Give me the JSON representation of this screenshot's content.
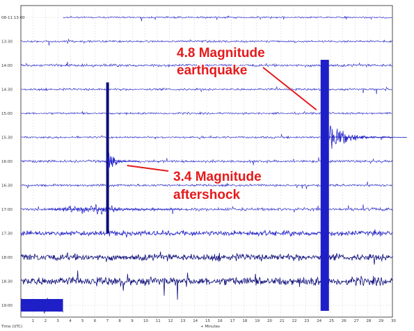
{
  "chart_data": {
    "type": "line",
    "title": "",
    "xlabel": "+ Minutes",
    "ylabel": "Time (UTC)",
    "xlim": [
      0,
      30
    ],
    "x_ticks": [
      "1",
      "2",
      "3",
      "4",
      "5",
      "6",
      "7",
      "8",
      "9",
      "10",
      "11",
      "12",
      "13",
      "14",
      "15",
      "16",
      "17",
      "18",
      "19",
      "20",
      "21",
      "22",
      "23",
      "24",
      "25",
      "26",
      "27",
      "28",
      "29",
      "30"
    ],
    "grid": true,
    "trace_color": "#1f1fc8",
    "dense_trace_color": "#0d0d7a",
    "annotation_color": "#e41a1c",
    "rows": [
      {
        "label": "08-11 13:00",
        "start_min": 3.4,
        "amp": 1.0
      },
      {
        "label": "13:30",
        "start_min": 0,
        "amp": 1.2
      },
      {
        "label": "14:00",
        "start_min": 0,
        "amp": 1.6
      },
      {
        "label": "14:30",
        "start_min": 0,
        "amp": 1.3
      },
      {
        "label": "15:00",
        "start_min": 0,
        "amp": 1.2
      },
      {
        "label": "15:30",
        "start_min": 0,
        "amp": 1.2
      },
      {
        "label": "16:00",
        "start_min": 0,
        "amp": 1.5
      },
      {
        "label": "16:30",
        "start_min": 0,
        "amp": 1.4
      },
      {
        "label": "17:00",
        "start_min": 0,
        "amp": 1.8
      },
      {
        "label": "17:30",
        "start_min": 0,
        "amp": 3.0
      },
      {
        "label": "18:00",
        "start_min": 0,
        "amp": 4.0
      },
      {
        "label": "18:30",
        "start_min": 0,
        "amp": 5.0
      },
      {
        "label": "19:00",
        "start_min": 0,
        "amp": 9.0
      }
    ],
    "events": [
      {
        "label_lines": [
          "4.8 Magnitude",
          "earthquake"
        ],
        "time_min": 24.2,
        "start_row": 2,
        "end_row": 12
      },
      {
        "label_lines": [
          "3.4 Magnitude",
          "aftershock"
        ],
        "time_min": 7.0,
        "start_row": 3,
        "end_row": 9
      }
    ]
  }
}
